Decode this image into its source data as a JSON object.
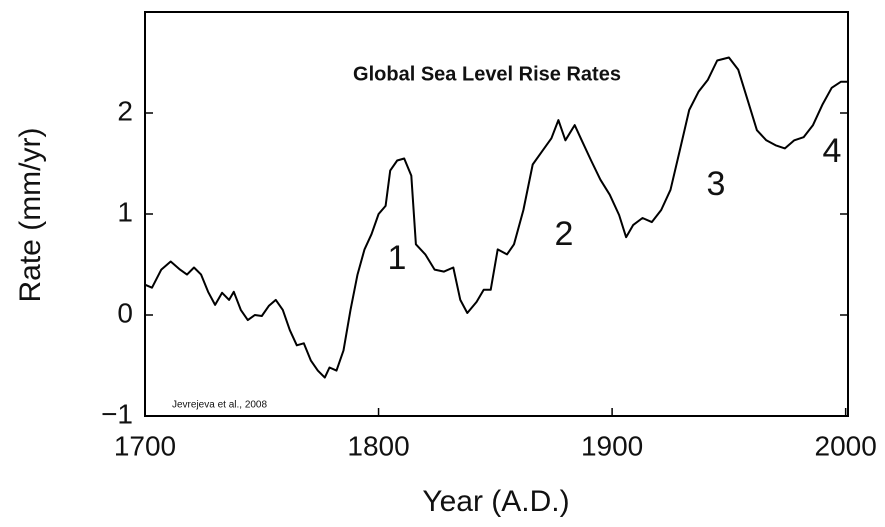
{
  "chart_data": {
    "type": "line",
    "title": "Global Sea Level Rise Rates",
    "x_label": "Year (A.D.)",
    "y_label": "Rate (mm/yr)",
    "annotations": [
      "1",
      "2",
      "3",
      "4"
    ],
    "source": "Jevrejeva et al., 2008",
    "xlim": [
      1700,
      2001
    ],
    "ylim": [
      -1,
      3
    ],
    "xticks": [
      1700,
      1800,
      1900,
      2000
    ],
    "yticks": [
      {
        "value": -1,
        "label": "−1"
      },
      0,
      1,
      2
    ],
    "x": [
      1700,
      1703,
      1707,
      1711,
      1715,
      1718,
      1721,
      1724,
      1727,
      1730,
      1733,
      1736,
      1738,
      1741,
      1744,
      1747,
      1750,
      1753,
      1756,
      1759,
      1762,
      1765,
      1768,
      1771,
      1774,
      1777,
      1779,
      1782,
      1785,
      1788,
      1791,
      1794,
      1797,
      1800,
      1803,
      1805,
      1808,
      1811,
      1814,
      1816,
      1820,
      1824,
      1828,
      1832,
      1835,
      1838,
      1842,
      1845,
      1848,
      1851,
      1855,
      1858,
      1862,
      1866,
      1870,
      1874,
      1877,
      1880,
      1884,
      1887,
      1891,
      1895,
      1899,
      1903,
      1906,
      1909,
      1913,
      1917,
      1921,
      1925,
      1929,
      1933,
      1937,
      1941,
      1945,
      1950,
      1954,
      1958,
      1962,
      1966,
      1970,
      1974,
      1978,
      1982,
      1986,
      1990,
      1994,
      1998,
      2001
    ],
    "series": [
      {
        "color": "#000000",
        "values": [
          0.3,
          0.27,
          0.45,
          0.53,
          0.45,
          0.4,
          0.47,
          0.4,
          0.23,
          0.1,
          0.22,
          0.15,
          0.23,
          0.05,
          -0.05,
          0,
          -0.01,
          0.09,
          0.15,
          0.05,
          -0.15,
          -0.3,
          -0.28,
          -0.45,
          -0.55,
          -0.62,
          -0.52,
          -0.55,
          -0.35,
          0.05,
          0.4,
          0.65,
          0.8,
          1.0,
          1.08,
          1.43,
          1.53,
          1.55,
          1.38,
          0.7,
          0.6,
          0.45,
          0.43,
          0.47,
          0.15,
          0.02,
          0.13,
          0.25,
          0.25,
          0.65,
          0.6,
          0.7,
          1.04,
          1.49,
          1.62,
          1.75,
          1.93,
          1.73,
          1.88,
          1.73,
          1.53,
          1.34,
          1.19,
          0.99,
          0.77,
          0.89,
          0.96,
          0.92,
          1.04,
          1.24,
          1.63,
          2.03,
          2.21,
          2.33,
          2.52,
          2.55,
          2.43,
          2.13,
          1.83,
          1.73,
          1.68,
          1.65,
          1.73,
          1.76,
          1.88,
          2.08,
          2.25,
          2.31,
          2.31
        ]
      }
    ]
  }
}
